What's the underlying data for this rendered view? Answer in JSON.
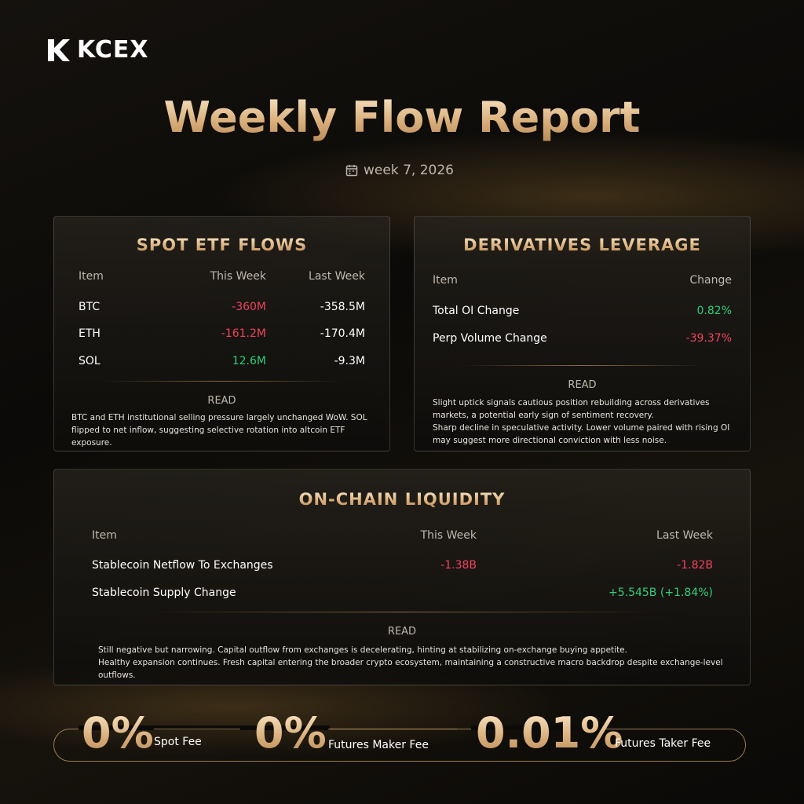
{
  "logo": "KCEX",
  "header": {
    "title": "Weekly Flow Report",
    "date": "week 7, 2026"
  },
  "spot_etf": {
    "title": "SPOT ETF FLOWS",
    "headers": [
      "Item",
      "This Week",
      "Last Week"
    ],
    "rows": [
      [
        "BTC",
        "-360M",
        "-358.5M"
      ],
      [
        "ETH",
        "-161.2M",
        "-170.4M"
      ],
      [
        "SOL",
        "12.6M",
        "-9.3M"
      ]
    ],
    "read_label": "READ",
    "read_text": [
      "BTC and ETH institutional selling pressure largely unchanged WoW. SOL flipped to net inflow, suggesting selective rotation into altcoin ETF exposure."
    ]
  },
  "derivatives": {
    "title": "DERIVATIVES LEVERAGE",
    "headers": [
      "Item",
      "Change"
    ],
    "rows": [
      [
        "Total OI Change",
        "0.82%"
      ],
      [
        "Perp Volume Change",
        "-39.37%"
      ]
    ],
    "read_label": "READ",
    "read_text": [
      "Slight uptick signals cautious position rebuilding across derivatives markets, a potential early sign of sentiment recovery.",
      "Sharp decline in speculative activity. Lower volume paired with rising OI may suggest more directional conviction with less noise."
    ]
  },
  "onchain": {
    "title": "ON-CHAIN LIQUIDITY",
    "headers": [
      "Item",
      "This Week",
      "Last Week"
    ],
    "rows": [
      [
        "Stablecoin Netflow To Exchanges",
        "-1.38B",
        "-1.82B"
      ],
      [
        "Stablecoin Supply Change",
        null,
        "+5.545B (+1.84%)"
      ]
    ],
    "read_label": "READ",
    "read_text": [
      "Still negative but narrowing. Capital outflow from exchanges is decelerating, hinting at stabilizing on-exchange buying appetite.",
      "Healthy expansion continues. Fresh capital entering the broader crypto ecosystem, maintaining a constructive macro backdrop despite exchange-level outflows."
    ]
  },
  "fees": [
    {
      "value": "0%",
      "label": "Spot Fee"
    },
    {
      "value": "0%",
      "label": "Futures Maker Fee"
    },
    {
      "value": "0.01%",
      "label": "Futures Taker Fee"
    }
  ]
}
